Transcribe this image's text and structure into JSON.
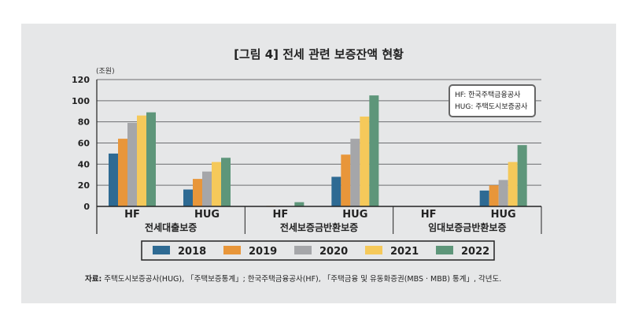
{
  "chart_data": {
    "type": "bar",
    "title": "[그림 4] 전세 관련 보증잔액 현황",
    "ylabel": "(조원)",
    "ylim": [
      0,
      120
    ],
    "yticks": [
      "0",
      "20",
      "40",
      "60",
      "80",
      "100",
      "120"
    ],
    "grid": true,
    "legend_position": "bottom",
    "groups": [
      {
        "label": "전세대출보증",
        "categories": [
          "HF",
          "HUG"
        ]
      },
      {
        "label": "전세보증금반환보증",
        "categories": [
          "HF",
          "HUG"
        ]
      },
      {
        "label": "임대보증금반환보증",
        "categories": [
          "HF",
          "HUG"
        ]
      }
    ],
    "categories": [
      "전세대출보증 HF",
      "전세대출보증 HUG",
      "전세보증금반환보증 HF",
      "전세보증금반환보증 HUG",
      "임대보증금반환보증 HF",
      "임대보증금반환보증 HUG"
    ],
    "series": [
      {
        "name": "2018",
        "color": "#2e6a93",
        "values": [
          50,
          16,
          0,
          28,
          null,
          15
        ]
      },
      {
        "name": "2019",
        "color": "#e8963a",
        "values": [
          64,
          26,
          0.5,
          49,
          null,
          20
        ]
      },
      {
        "name": "2020",
        "color": "#a5a6a9",
        "values": [
          79,
          33,
          0,
          64,
          null,
          25
        ]
      },
      {
        "name": "2021",
        "color": "#f5c95a",
        "values": [
          86,
          42,
          0,
          85,
          null,
          42
        ]
      },
      {
        "name": "2022",
        "color": "#5e967a",
        "values": [
          89,
          46,
          4,
          105,
          null,
          58
        ]
      }
    ],
    "note": [
      "HF: 한국주택금융공사",
      "HUG: 주택도시보증공사"
    ]
  },
  "source": {
    "label": "자료:",
    "text": " 주택도시보증공사(HUG), 「주택보증통계」; 한국주택금융공사(HF), 「주택금융 및 유동화증권(MBS · MBB) 통계」, 각년도."
  }
}
